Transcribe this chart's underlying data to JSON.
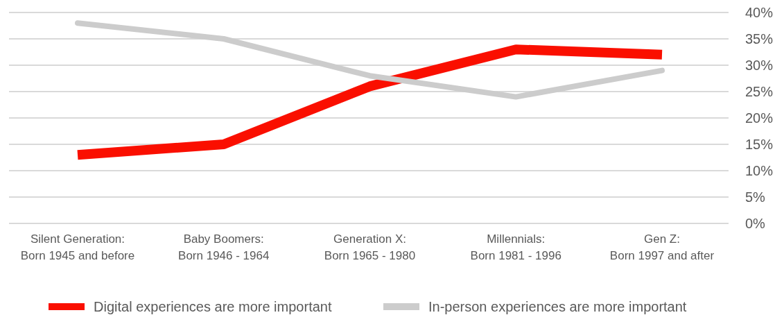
{
  "chart_data": {
    "type": "line",
    "categories": [
      "Silent Generation:\nBorn 1945 and before",
      "Baby Boomers:\nBorn 1946 - 1964",
      "Generation X:\nBorn 1965 - 1980",
      "Millennials:\nBorn 1981 - 1996",
      "Gen Z:\nBorn 1997 and after"
    ],
    "series": [
      {
        "name": "Digital experiences are more important",
        "color": "#fa0f00",
        "values": [
          13,
          15,
          26,
          33,
          32
        ]
      },
      {
        "name": "In-person experiences are more important",
        "color": "#cccccc",
        "values": [
          38,
          35,
          28,
          24,
          29
        ]
      }
    ],
    "ylim": [
      0,
      40
    ],
    "yticks": [
      {
        "value": 0,
        "label": "0%"
      },
      {
        "value": 5,
        "label": "5%"
      },
      {
        "value": 10,
        "label": "10%"
      },
      {
        "value": 15,
        "label": "15%"
      },
      {
        "value": 20,
        "label": "20%"
      },
      {
        "value": 25,
        "label": "25%"
      },
      {
        "value": 30,
        "label": "30%"
      },
      {
        "value": 35,
        "label": "35%"
      },
      {
        "value": 40,
        "label": "40%"
      }
    ],
    "grid": "y",
    "legend": "bottom"
  }
}
